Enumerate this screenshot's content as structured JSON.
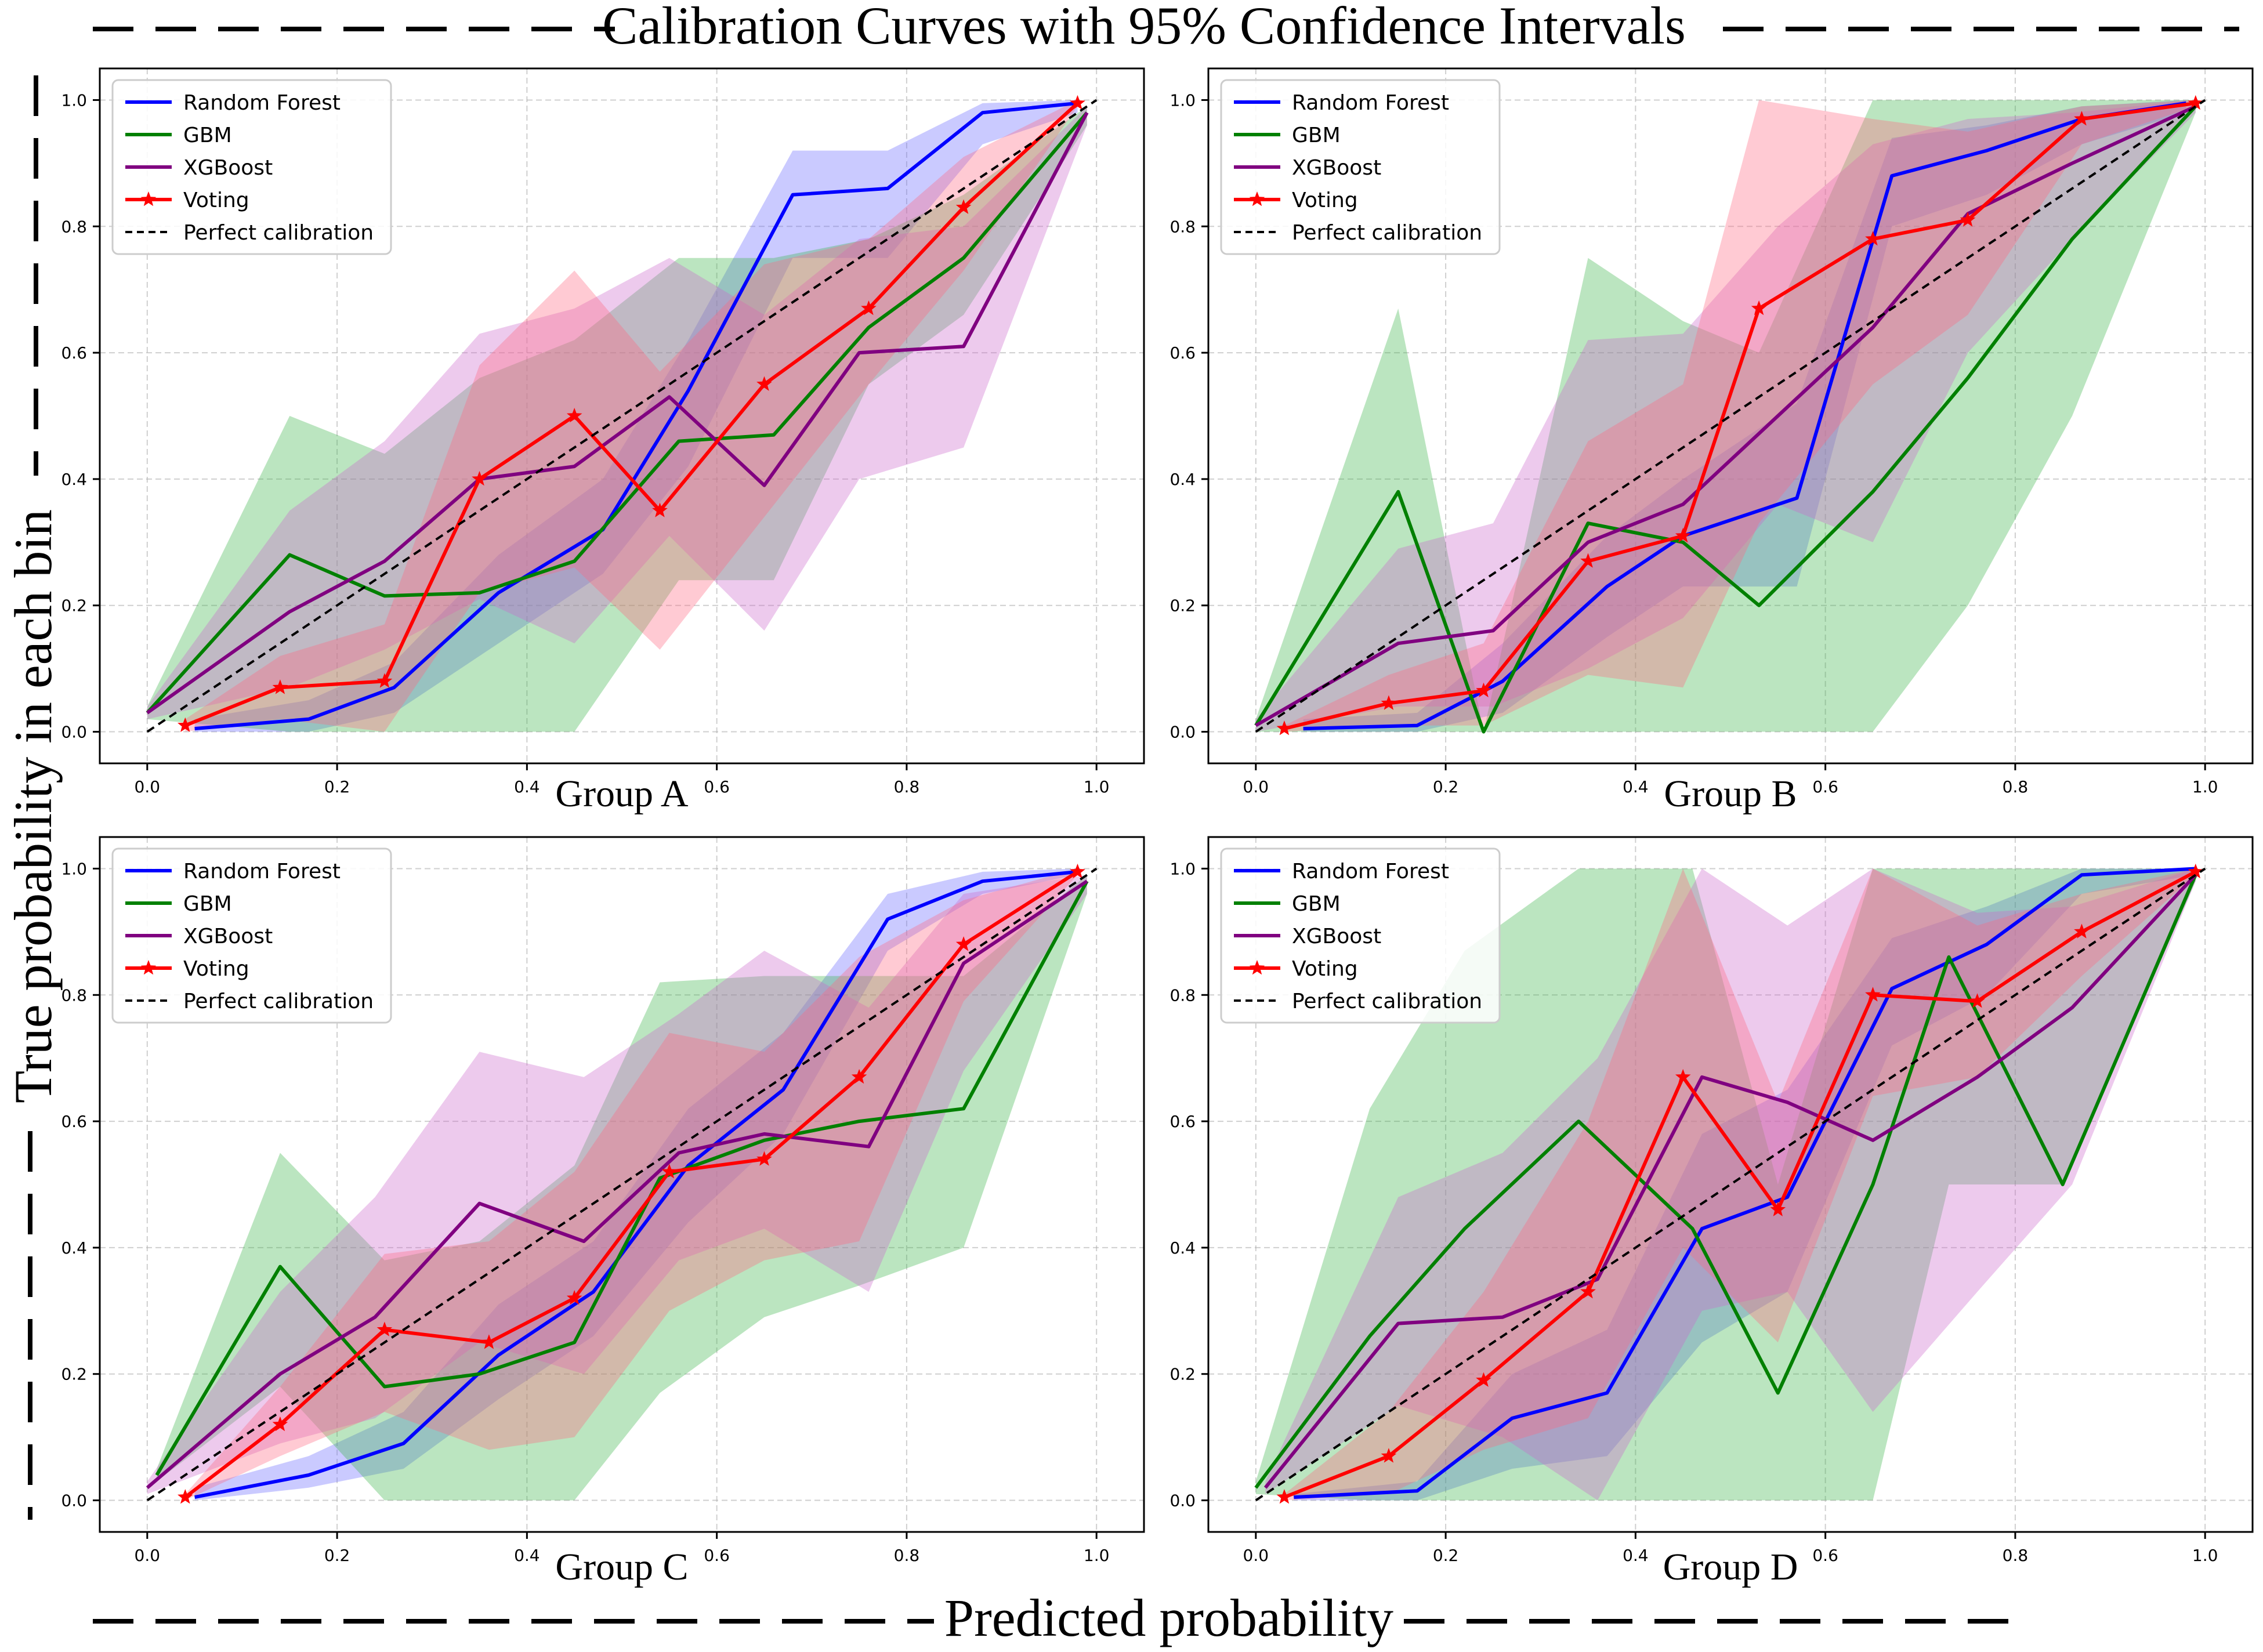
{
  "figure": {
    "title": "Calibration Curves with 95% Confidence Intervals",
    "xlabel": "Predicted probability",
    "ylabel": "True probability in each bin"
  },
  "colors": {
    "rf": "#0000ff",
    "gbm": "#008000",
    "xgb": "#800080",
    "voting": "#ff0000",
    "perfect": "#000000",
    "rf_band": "#6666ff",
    "gbm_band": "#3cb44b",
    "xgb_band": "#cc66cc",
    "voting_band": "#ff6680",
    "grid": "#b0b0b0"
  },
  "chart_data": [
    {
      "type": "line",
      "title": "Group A",
      "xlim": [
        0,
        1
      ],
      "ylim": [
        0,
        1
      ],
      "xticks": [
        "0.0",
        "0.2",
        "0.4",
        "0.6",
        "0.8",
        "1.0"
      ],
      "yticks": [
        "0.0",
        "0.2",
        "0.4",
        "0.6",
        "0.8",
        "1.0"
      ],
      "grid": true,
      "legend": "top-left",
      "series": [
        {
          "key": "rf",
          "name": "Random Forest",
          "marker": "none",
          "x": [
            0.05,
            0.17,
            0.26,
            0.37,
            0.48,
            0.57,
            0.68,
            0.78,
            0.88,
            0.98
          ],
          "y": [
            0.005,
            0.02,
            0.07,
            0.22,
            0.32,
            0.54,
            0.85,
            0.86,
            0.98,
            0.995
          ],
          "lower": [
            0.0,
            0.0,
            0.03,
            0.14,
            0.25,
            0.42,
            0.75,
            0.75,
            0.93,
            0.98
          ],
          "upper": [
            0.02,
            0.05,
            0.11,
            0.28,
            0.4,
            0.62,
            0.92,
            0.92,
            0.995,
            1.0
          ]
        },
        {
          "key": "gbm",
          "name": "GBM",
          "marker": "none",
          "x": [
            0.0,
            0.15,
            0.25,
            0.35,
            0.45,
            0.56,
            0.66,
            0.76,
            0.86,
            0.99
          ],
          "y": [
            0.03,
            0.28,
            0.215,
            0.22,
            0.27,
            0.46,
            0.47,
            0.64,
            0.75,
            0.98
          ],
          "lower": [
            0.02,
            0.0,
            0.0,
            0.0,
            0.0,
            0.24,
            0.24,
            0.55,
            0.66,
            0.96
          ],
          "upper": [
            0.04,
            0.5,
            0.44,
            0.56,
            0.62,
            0.75,
            0.75,
            0.78,
            0.85,
            0.99
          ]
        },
        {
          "key": "xgb",
          "name": "XGBoost",
          "marker": "none",
          "x": [
            0.0,
            0.15,
            0.25,
            0.35,
            0.45,
            0.55,
            0.65,
            0.75,
            0.86,
            0.99
          ],
          "y": [
            0.03,
            0.19,
            0.27,
            0.4,
            0.42,
            0.53,
            0.39,
            0.6,
            0.61,
            0.98
          ],
          "lower": [
            0.02,
            0.07,
            0.13,
            0.21,
            0.14,
            0.31,
            0.16,
            0.4,
            0.45,
            0.96
          ],
          "upper": [
            0.04,
            0.35,
            0.46,
            0.63,
            0.67,
            0.75,
            0.66,
            0.78,
            0.8,
            0.99
          ]
        },
        {
          "key": "voting",
          "name": "Voting",
          "marker": "star",
          "x": [
            0.04,
            0.14,
            0.25,
            0.35,
            0.45,
            0.54,
            0.65,
            0.76,
            0.86,
            0.98
          ],
          "y": [
            0.01,
            0.07,
            0.08,
            0.4,
            0.5,
            0.35,
            0.55,
            0.67,
            0.83,
            0.995
          ],
          "lower": [
            0.0,
            0.02,
            0.0,
            0.22,
            0.26,
            0.13,
            0.34,
            0.55,
            0.73,
            0.99
          ],
          "upper": [
            0.02,
            0.12,
            0.17,
            0.58,
            0.73,
            0.57,
            0.74,
            0.78,
            0.91,
            1.0
          ]
        },
        {
          "key": "perfect",
          "name": "Perfect calibration",
          "marker": "none",
          "dashed": true,
          "x": [
            0,
            1
          ],
          "y": [
            0,
            1
          ]
        }
      ]
    },
    {
      "type": "line",
      "title": "Group B",
      "xlim": [
        0,
        1
      ],
      "ylim": [
        0,
        1
      ],
      "xticks": [
        "0.0",
        "0.2",
        "0.4",
        "0.6",
        "0.8",
        "1.0"
      ],
      "yticks": [
        "0.0",
        "0.2",
        "0.4",
        "0.6",
        "0.8",
        "1.0"
      ],
      "grid": true,
      "legend": "top-left",
      "series": [
        {
          "key": "rf",
          "name": "Random Forest",
          "marker": "none",
          "x": [
            0.05,
            0.17,
            0.26,
            0.37,
            0.45,
            0.57,
            0.67,
            0.77,
            0.87,
            0.98
          ],
          "y": [
            0.005,
            0.01,
            0.08,
            0.23,
            0.31,
            0.37,
            0.88,
            0.92,
            0.97,
            0.995
          ],
          "lower": [
            0.0,
            0.0,
            0.03,
            0.15,
            0.23,
            0.23,
            0.8,
            0.85,
            0.93,
            0.98
          ],
          "upper": [
            0.02,
            0.03,
            0.14,
            0.31,
            0.4,
            0.52,
            0.94,
            0.96,
            0.99,
            1.0
          ]
        },
        {
          "key": "gbm",
          "name": "GBM",
          "marker": "none",
          "x": [
            0.0,
            0.15,
            0.24,
            0.35,
            0.45,
            0.53,
            0.65,
            0.75,
            0.86,
            0.99
          ],
          "y": [
            0.01,
            0.38,
            0.0,
            0.33,
            0.3,
            0.2,
            0.38,
            0.56,
            0.78,
            0.99
          ],
          "lower": [
            0.0,
            0.0,
            0.0,
            0.0,
            0.0,
            0.0,
            0.0,
            0.2,
            0.5,
            0.98
          ],
          "upper": [
            0.02,
            0.67,
            0.0,
            0.75,
            0.65,
            0.6,
            1.0,
            1.0,
            1.0,
            1.0
          ]
        },
        {
          "key": "xgb",
          "name": "XGBoost",
          "marker": "none",
          "x": [
            0.0,
            0.15,
            0.25,
            0.35,
            0.45,
            0.55,
            0.65,
            0.75,
            0.86,
            0.99
          ],
          "y": [
            0.01,
            0.14,
            0.16,
            0.3,
            0.36,
            0.5,
            0.64,
            0.82,
            0.9,
            0.99
          ],
          "lower": [
            0.0,
            0.04,
            0.04,
            0.1,
            0.18,
            0.36,
            0.3,
            0.6,
            0.78,
            0.98
          ],
          "upper": [
            0.02,
            0.29,
            0.33,
            0.62,
            0.63,
            0.8,
            0.93,
            0.97,
            0.98,
            1.0
          ]
        },
        {
          "key": "voting",
          "name": "Voting",
          "marker": "star",
          "x": [
            0.03,
            0.14,
            0.24,
            0.35,
            0.45,
            0.53,
            0.65,
            0.75,
            0.87,
            0.99
          ],
          "y": [
            0.005,
            0.045,
            0.065,
            0.27,
            0.31,
            0.67,
            0.78,
            0.81,
            0.97,
            0.995
          ],
          "lower": [
            0.0,
            0.01,
            0.01,
            0.09,
            0.07,
            0.33,
            0.55,
            0.66,
            0.93,
            0.99
          ],
          "upper": [
            0.01,
            0.09,
            0.14,
            0.46,
            0.55,
            1.0,
            0.97,
            0.95,
            0.99,
            1.0
          ]
        },
        {
          "key": "perfect",
          "name": "Perfect calibration",
          "marker": "none",
          "dashed": true,
          "x": [
            0,
            1
          ],
          "y": [
            0,
            1
          ]
        }
      ]
    },
    {
      "type": "line",
      "title": "Group C",
      "xlim": [
        0,
        1
      ],
      "ylim": [
        0,
        1
      ],
      "xticks": [
        "0.0",
        "0.2",
        "0.4",
        "0.6",
        "0.8",
        "1.0"
      ],
      "yticks": [
        "0.0",
        "0.2",
        "0.4",
        "0.6",
        "0.8",
        "1.0"
      ],
      "grid": true,
      "legend": "top-left",
      "series": [
        {
          "key": "rf",
          "name": "Random Forest",
          "marker": "none",
          "x": [
            0.05,
            0.17,
            0.27,
            0.37,
            0.47,
            0.57,
            0.67,
            0.78,
            0.88,
            0.98
          ],
          "y": [
            0.005,
            0.04,
            0.09,
            0.23,
            0.33,
            0.53,
            0.65,
            0.92,
            0.98,
            0.995
          ],
          "lower": [
            0.0,
            0.02,
            0.05,
            0.16,
            0.26,
            0.44,
            0.58,
            0.87,
            0.96,
            0.99
          ],
          "upper": [
            0.02,
            0.07,
            0.14,
            0.31,
            0.41,
            0.62,
            0.74,
            0.96,
            0.995,
            1.0
          ]
        },
        {
          "key": "gbm",
          "name": "GBM",
          "marker": "none",
          "x": [
            0.01,
            0.14,
            0.25,
            0.35,
            0.45,
            0.54,
            0.65,
            0.75,
            0.86,
            0.99
          ],
          "y": [
            0.04,
            0.37,
            0.18,
            0.2,
            0.25,
            0.51,
            0.57,
            0.6,
            0.62,
            0.98
          ],
          "lower": [
            0.03,
            0.18,
            0.0,
            0.0,
            0.0,
            0.17,
            0.29,
            0.34,
            0.4,
            0.96
          ],
          "upper": [
            0.05,
            0.55,
            0.38,
            0.41,
            0.53,
            0.82,
            0.83,
            0.83,
            0.83,
            0.99
          ]
        },
        {
          "key": "xgb",
          "name": "XGBoost",
          "marker": "none",
          "x": [
            0.0,
            0.14,
            0.24,
            0.35,
            0.46,
            0.56,
            0.65,
            0.76,
            0.86,
            0.99
          ],
          "y": [
            0.02,
            0.2,
            0.29,
            0.47,
            0.41,
            0.55,
            0.58,
            0.56,
            0.85,
            0.98
          ],
          "lower": [
            0.01,
            0.09,
            0.13,
            0.25,
            0.2,
            0.38,
            0.43,
            0.33,
            0.68,
            0.96
          ],
          "upper": [
            0.03,
            0.33,
            0.48,
            0.71,
            0.67,
            0.77,
            0.87,
            0.78,
            0.96,
            0.99
          ]
        },
        {
          "key": "voting",
          "name": "Voting",
          "marker": "star",
          "x": [
            0.04,
            0.14,
            0.25,
            0.36,
            0.45,
            0.55,
            0.65,
            0.75,
            0.86,
            0.98
          ],
          "y": [
            0.005,
            0.12,
            0.27,
            0.25,
            0.32,
            0.52,
            0.54,
            0.67,
            0.88,
            0.995
          ],
          "lower": [
            0.0,
            0.07,
            0.14,
            0.08,
            0.1,
            0.3,
            0.38,
            0.41,
            0.79,
            0.99
          ],
          "upper": [
            0.01,
            0.18,
            0.39,
            0.41,
            0.52,
            0.74,
            0.71,
            0.86,
            0.95,
            1.0
          ]
        },
        {
          "key": "perfect",
          "name": "Perfect calibration",
          "marker": "none",
          "dashed": true,
          "x": [
            0,
            1
          ],
          "y": [
            0,
            1
          ]
        }
      ]
    },
    {
      "type": "line",
      "title": "Group D",
      "xlim": [
        0,
        1
      ],
      "ylim": [
        0,
        1
      ],
      "xticks": [
        "0.0",
        "0.2",
        "0.4",
        "0.6",
        "0.8",
        "1.0"
      ],
      "yticks": [
        "0.0",
        "0.2",
        "0.4",
        "0.6",
        "0.8",
        "1.0"
      ],
      "grid": true,
      "legend": "top-left",
      "series": [
        {
          "key": "rf",
          "name": "Random Forest",
          "marker": "none",
          "x": [
            0.04,
            0.17,
            0.27,
            0.37,
            0.47,
            0.56,
            0.67,
            0.77,
            0.87,
            0.99
          ],
          "y": [
            0.005,
            0.015,
            0.13,
            0.17,
            0.43,
            0.48,
            0.81,
            0.88,
            0.99,
            1.0
          ],
          "lower": [
            0.0,
            0.0,
            0.05,
            0.07,
            0.25,
            0.33,
            0.72,
            0.8,
            0.96,
            0.99
          ],
          "upper": [
            0.01,
            0.03,
            0.2,
            0.27,
            0.58,
            0.65,
            0.89,
            0.94,
            1.0,
            1.0
          ]
        },
        {
          "key": "gbm",
          "name": "GBM",
          "marker": "none",
          "x": [
            0.0,
            0.12,
            0.22,
            0.34,
            0.46,
            0.55,
            0.65,
            0.73,
            0.85,
            0.99
          ],
          "y": [
            0.02,
            0.26,
            0.43,
            0.6,
            0.43,
            0.17,
            0.5,
            0.86,
            0.5,
            0.99
          ],
          "lower": [
            0.01,
            0.0,
            0.0,
            0.0,
            0.0,
            0.0,
            0.0,
            0.5,
            0.5,
            0.98
          ],
          "upper": [
            0.03,
            0.62,
            0.87,
            1.0,
            1.0,
            0.5,
            1.0,
            1.0,
            1.0,
            1.0
          ]
        },
        {
          "key": "xgb",
          "name": "XGBoost",
          "marker": "none",
          "x": [
            0.01,
            0.15,
            0.26,
            0.36,
            0.47,
            0.56,
            0.65,
            0.76,
            0.86,
            0.99
          ],
          "y": [
            0.02,
            0.28,
            0.29,
            0.35,
            0.67,
            0.63,
            0.57,
            0.67,
            0.78,
            0.99
          ],
          "lower": [
            0.01,
            0.15,
            0.1,
            0.0,
            0.3,
            0.33,
            0.14,
            0.33,
            0.5,
            0.98
          ],
          "upper": [
            0.03,
            0.48,
            0.55,
            0.7,
            1.0,
            0.91,
            1.0,
            0.93,
            0.94,
            1.0
          ]
        },
        {
          "key": "voting",
          "name": "Voting",
          "marker": "star",
          "x": [
            0.03,
            0.14,
            0.24,
            0.35,
            0.45,
            0.55,
            0.65,
            0.76,
            0.87,
            0.99
          ],
          "y": [
            0.005,
            0.07,
            0.19,
            0.33,
            0.67,
            0.46,
            0.8,
            0.79,
            0.9,
            0.995
          ],
          "lower": [
            0.0,
            0.01,
            0.08,
            0.13,
            0.4,
            0.25,
            0.64,
            0.67,
            0.83,
            0.99
          ],
          "upper": [
            0.01,
            0.14,
            0.33,
            0.6,
            1.0,
            0.63,
            1.0,
            0.91,
            0.96,
            1.0
          ]
        },
        {
          "key": "perfect",
          "name": "Perfect calibration",
          "marker": "none",
          "dashed": true,
          "x": [
            0,
            1
          ],
          "y": [
            0,
            1
          ]
        }
      ]
    }
  ]
}
